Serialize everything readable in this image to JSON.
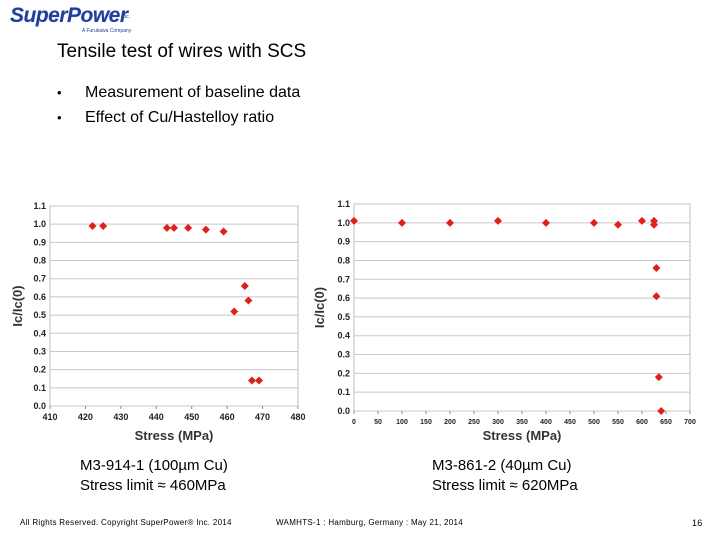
{
  "logo": {
    "text": "SuperPower",
    "inc": "Inc.",
    "tagline": "A Furukawa Company"
  },
  "title": "Tensile test of wires with SCS",
  "bullets": [
    "Measurement of baseline data",
    "Effect of Cu/Hastelloy ratio"
  ],
  "chart_data": [
    {
      "type": "scatter",
      "title": "",
      "xlabel": "Stress (MPa)",
      "ylabel": "Ic/Ic(0)",
      "xlim": [
        410,
        480
      ],
      "ylim": [
        0.0,
        1.1
      ],
      "x_ticks": [
        410,
        420,
        430,
        440,
        450,
        460,
        470,
        480
      ],
      "y_ticks": [
        0.0,
        0.1,
        0.2,
        0.3,
        0.4,
        0.5,
        0.6,
        0.7,
        0.8,
        0.9,
        1.0,
        1.1
      ],
      "grid": "horizontal",
      "marker_color": "#e0201b",
      "series": [
        {
          "x": [
            422,
            425,
            443,
            445,
            449,
            454,
            459,
            462,
            465,
            466,
            467,
            469
          ],
          "y": [
            0.99,
            0.99,
            0.98,
            0.98,
            0.98,
            0.97,
            0.96,
            0.52,
            0.66,
            0.58,
            0.14,
            0.14
          ]
        }
      ]
    },
    {
      "type": "scatter",
      "title": "",
      "xlabel": "Stress (MPa)",
      "ylabel": "Ic/Ic(0)",
      "xlim": [
        0,
        700
      ],
      "ylim": [
        0.0,
        1.1
      ],
      "x_ticks": [
        0,
        50,
        100,
        150,
        200,
        250,
        300,
        350,
        400,
        450,
        500,
        550,
        600,
        650,
        700
      ],
      "y_ticks": [
        0.0,
        0.1,
        0.2,
        0.3,
        0.4,
        0.5,
        0.6,
        0.7,
        0.8,
        0.9,
        1.0,
        1.1
      ],
      "grid": "horizontal",
      "marker_color": "#e0201b",
      "series": [
        {
          "x": [
            0,
            100,
            200,
            300,
            400,
            500,
            550,
            600,
            625,
            625,
            630,
            630,
            635,
            640
          ],
          "y": [
            1.01,
            1.0,
            1.0,
            1.01,
            1.0,
            1.0,
            0.99,
            1.01,
            1.01,
            0.99,
            0.76,
            0.61,
            0.18,
            0.0
          ]
        }
      ]
    }
  ],
  "captions": [
    {
      "line1": "M3-914-1 (100µm Cu)",
      "line2": "Stress limit ≈ 460MPa"
    },
    {
      "line1": "M3-861-2 (40µm Cu)",
      "line2": "Stress limit ≈ 620MPa"
    }
  ],
  "footer": {
    "copyright": "All Rights Reserved. Copyright SuperPower® Inc. 2014",
    "event": "WAMHTS-1 : Hamburg, Germany : May 21, 2014",
    "page": "16"
  }
}
